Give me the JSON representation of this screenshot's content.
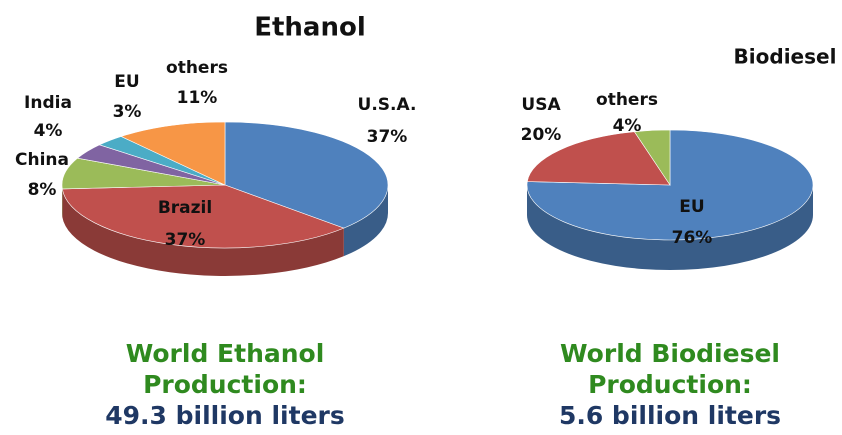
{
  "chart_data": [
    {
      "type": "pie",
      "title": "Ethanol",
      "categories": [
        "U.S.A.",
        "Brazil",
        "China",
        "India",
        "EU",
        "others"
      ],
      "values": [
        37,
        37,
        8,
        4,
        3,
        11
      ],
      "value_labels": [
        "37%",
        "37%",
        "8%",
        "4%",
        "3%",
        "11%"
      ],
      "colors": [
        "#4f81bd",
        "#c0504d",
        "#9bbb59",
        "#8064a2",
        "#4bacc6",
        "#f79646"
      ],
      "caption": [
        "World Ethanol",
        "Production:",
        "49.3 billion liters"
      ]
    },
    {
      "type": "pie",
      "title": "Biodiesel",
      "categories": [
        "EU",
        "USA",
        "others"
      ],
      "values": [
        76,
        20,
        4
      ],
      "value_labels": [
        "76%",
        "20%",
        "4%"
      ],
      "colors": [
        "#4f81bd",
        "#c0504d",
        "#9bbb59"
      ],
      "caption": [
        "World Biodiesel",
        "Production:",
        "5.6 billion liters"
      ]
    }
  ]
}
